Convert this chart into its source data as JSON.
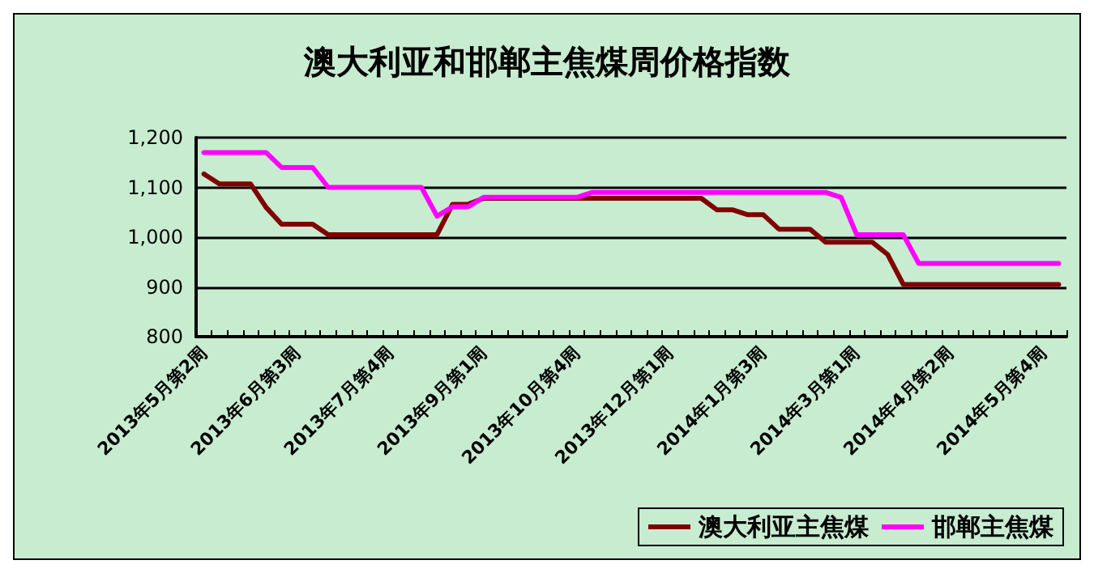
{
  "chart_data": {
    "type": "line",
    "title": "澳大利亚和邯郸主焦煤周价格指数",
    "categories": [
      "2013年5月第2周",
      null,
      null,
      null,
      null,
      null,
      "2013年6月第3周",
      null,
      null,
      null,
      null,
      null,
      "2013年7月第4周",
      null,
      null,
      null,
      null,
      null,
      "2013年9月第1周",
      null,
      null,
      null,
      null,
      null,
      "2013年10月第4周",
      null,
      null,
      null,
      null,
      null,
      "2013年12月第1周",
      null,
      null,
      null,
      null,
      null,
      "2014年1月第3周",
      null,
      null,
      null,
      null,
      null,
      "2014年3月第1周",
      null,
      null,
      null,
      null,
      null,
      "2014年4月第2周",
      null,
      null,
      null,
      null,
      null,
      "2014年5月第4周",
      null
    ],
    "series": [
      {
        "name": "澳大利亚主焦煤",
        "color": "#800000",
        "values": [
          1127,
          1107,
          1107,
          1107,
          1060,
          1026,
          1026,
          1026,
          1005,
          1005,
          1005,
          1005,
          1005,
          1005,
          1005,
          1005,
          1066,
          1066,
          1078,
          1078,
          1078,
          1078,
          1078,
          1078,
          1078,
          1078,
          1078,
          1078,
          1078,
          1078,
          1078,
          1078,
          1078,
          1055,
          1055,
          1045,
          1045,
          1016,
          1016,
          1016,
          990,
          990,
          990,
          990,
          965,
          905,
          905,
          905,
          905,
          905,
          905,
          905,
          905,
          905,
          905,
          905
        ]
      },
      {
        "name": "邯郸主焦煤",
        "color": "#ff00ff",
        "values": [
          1170,
          1170,
          1170,
          1170,
          1170,
          1140,
          1140,
          1140,
          1100,
          1100,
          1100,
          1100,
          1100,
          1100,
          1100,
          1042,
          1061,
          1061,
          1080,
          1080,
          1080,
          1080,
          1080,
          1080,
          1080,
          1090,
          1090,
          1090,
          1090,
          1090,
          1090,
          1090,
          1090,
          1090,
          1090,
          1090,
          1090,
          1090,
          1090,
          1090,
          1090,
          1080,
          1005,
          1005,
          1005,
          1005,
          947,
          947,
          947,
          947,
          947,
          947,
          947,
          947,
          947,
          947
        ]
      }
    ],
    "ylim": [
      800,
      1200
    ],
    "yticks": [
      800,
      900,
      {
        "value": 1000,
        "label": "1,000"
      },
      {
        "value": 1100,
        "label": "1,100"
      },
      {
        "value": 1200,
        "label": "1,200"
      }
    ],
    "grid": "y",
    "legend": "bottom right",
    "marker": "none",
    "line_style": "solid"
  }
}
